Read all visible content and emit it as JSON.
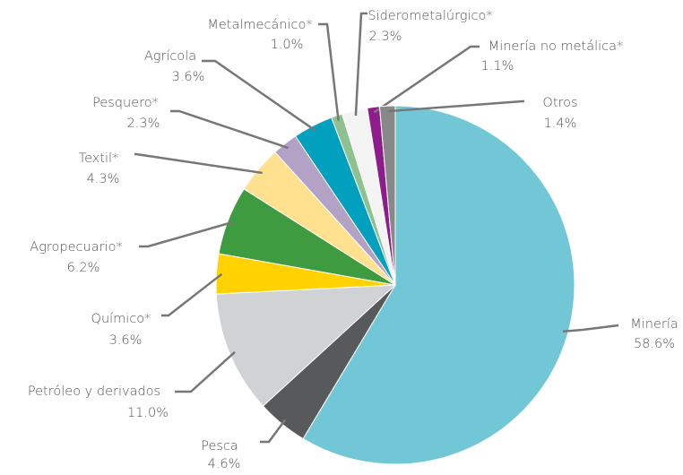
{
  "chart_data": {
    "type": "pie",
    "categories": [
      "Minería",
      "Pesca",
      "Petróleo y derivados",
      "Químico*",
      "Agropecuario*",
      "Textil*",
      "Pesquero*",
      "Agrícola",
      "Metalmecánico*",
      "Siderometalúrgico*",
      "Minería no metálica*",
      "Otros"
    ],
    "values": [
      58.6,
      4.6,
      11.0,
      3.6,
      6.2,
      4.3,
      2.3,
      3.6,
      1.0,
      2.3,
      1.1,
      1.4
    ],
    "value_labels": [
      "58.6%",
      "4.6%",
      "11.0%",
      "3.6%",
      "6.2%",
      "4.3%",
      "2.3%",
      "3.6%",
      "1.0%",
      "2.3%",
      "1.1%",
      "1.4%"
    ],
    "colors": [
      "#72c7d6",
      "#58595b",
      "#d1d2d4",
      "#ffd200",
      "#3f9b3f",
      "#ffe18f",
      "#b3a2c6",
      "#00a0be",
      "#8fc18f",
      "#f4f4f4",
      "#8e1c8c",
      "#888888"
    ]
  }
}
